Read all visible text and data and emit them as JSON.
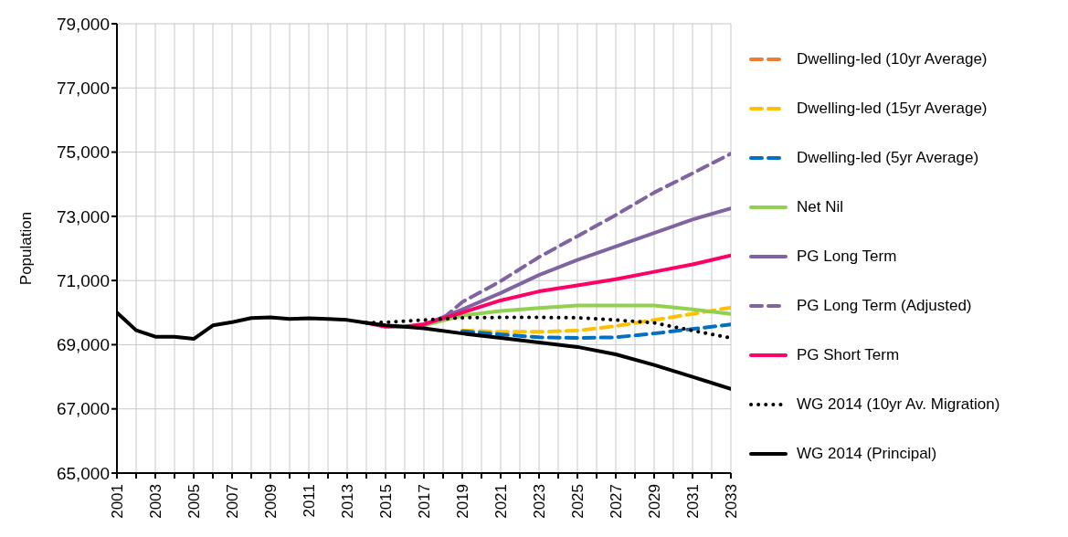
{
  "chart_data": {
    "type": "line",
    "ylabel": "Population",
    "xlim": [
      2001,
      2033
    ],
    "xticks": [
      2001,
      {
        "value": 2002,
        "label": null
      },
      2003,
      {
        "value": 2004,
        "label": null
      },
      2005,
      {
        "value": 2006,
        "label": null
      },
      2007,
      {
        "value": 2008,
        "label": null
      },
      2009,
      {
        "value": 2010,
        "label": null
      },
      2011,
      {
        "value": 2012,
        "label": null
      },
      2013,
      {
        "value": 2014,
        "label": null
      },
      2015,
      {
        "value": 2016,
        "label": null
      },
      2017,
      {
        "value": 2018,
        "label": null
      },
      2019,
      {
        "value": 2020,
        "label": null
      },
      2021,
      {
        "value": 2022,
        "label": null
      },
      2023,
      {
        "value": 2024,
        "label": null
      },
      2025,
      {
        "value": 2026,
        "label": null
      },
      2027,
      {
        "value": 2028,
        "label": null
      },
      2029,
      {
        "value": 2030,
        "label": null
      },
      2031,
      {
        "value": 2032,
        "label": null
      },
      2033
    ],
    "ylim": [
      65000,
      79000
    ],
    "yticks": [
      {
        "value": 65000,
        "label": "65,000"
      },
      {
        "value": 67000,
        "label": "67,000"
      },
      {
        "value": 69000,
        "label": "69,000"
      },
      {
        "value": 71000,
        "label": "71,000"
      },
      {
        "value": 73000,
        "label": "73,000"
      },
      {
        "value": 75000,
        "label": "75,000"
      },
      {
        "value": 77000,
        "label": "77,000"
      },
      {
        "value": 79000,
        "label": "79,000"
      }
    ],
    "grid": true,
    "legend": "right",
    "marker": "none",
    "series": [
      {
        "name": "Dwelling-led (10yr Average)",
        "color": "#ed7d31",
        "line_style": "dashed"
      },
      {
        "name": "Dwelling-led (15yr Average)",
        "color": "#ffc000",
        "line_style": "dashed",
        "x": [
          2019,
          2021,
          2023,
          2025,
          2027,
          2029,
          2031,
          2033
        ],
        "values": [
          69440,
          69400,
          69400,
          69440,
          69580,
          69770,
          69960,
          70160
        ]
      },
      {
        "name": "Dwelling-led (5yr Average)",
        "color": "#0070c0",
        "line_style": "dashed",
        "x": [
          2019,
          2021,
          2023,
          2025,
          2027,
          2029,
          2031,
          2033
        ],
        "values": [
          69420,
          69320,
          69230,
          69210,
          69230,
          69350,
          69490,
          69630
        ]
      },
      {
        "name": "Net Nil",
        "color": "#92d050",
        "line_style": "solid",
        "x": [
          2017,
          2019,
          2021,
          2023,
          2025,
          2027,
          2029,
          2031,
          2033
        ],
        "values": [
          69600,
          69910,
          70050,
          70140,
          70220,
          70220,
          70220,
          70100,
          69960
        ]
      },
      {
        "name": "PG Long Term",
        "color": "#8064a2",
        "line_style": "solid",
        "x": [
          2017,
          2019,
          2021,
          2023,
          2025,
          2027,
          2029,
          2031,
          2033
        ],
        "values": [
          69620,
          70100,
          70610,
          71170,
          71640,
          72060,
          72480,
          72900,
          73250
        ]
      },
      {
        "name": "PG Long Term (Adjusted)",
        "color": "#8064a2",
        "line_style": "dashed",
        "x": [
          2018,
          2019,
          2021,
          2023,
          2025,
          2027,
          2029,
          2031,
          2033
        ],
        "values": [
          69820,
          70330,
          70980,
          71730,
          72380,
          73040,
          73740,
          74340,
          74950
        ]
      },
      {
        "name": "PG Short Term",
        "color": "#ff0066",
        "line_style": "solid",
        "x": [
          2014,
          2015,
          2016,
          2017,
          2019,
          2021,
          2023,
          2025,
          2027,
          2029,
          2031,
          2033
        ],
        "values": [
          69680,
          69560,
          69570,
          69640,
          70000,
          70380,
          70660,
          70850,
          71040,
          71270,
          71500,
          71780
        ]
      },
      {
        "name": "WG 2014 (10yr Av. Migration)",
        "color": "#000000",
        "line_style": "dotted",
        "x": [
          2014,
          2015,
          2017,
          2019,
          2021,
          2023,
          2025,
          2027,
          2029,
          2031,
          2033
        ],
        "values": [
          69680,
          69700,
          69770,
          69840,
          69850,
          69850,
          69840,
          69770,
          69680,
          69440,
          69210
        ]
      },
      {
        "name": "WG 2014 (Principal)",
        "color": "#000000",
        "line_style": "solid",
        "x": [
          2001,
          2002,
          2003,
          2004,
          2005,
          2006,
          2007,
          2008,
          2009,
          2010,
          2011,
          2012,
          2013,
          2014,
          2015,
          2016,
          2017,
          2019,
          2021,
          2023,
          2025,
          2027,
          2029,
          2031,
          2033
        ],
        "values": [
          70000,
          69450,
          69250,
          69250,
          69180,
          69600,
          69700,
          69830,
          69850,
          69800,
          69820,
          69800,
          69770,
          69680,
          69600,
          69560,
          69510,
          69350,
          69210,
          69070,
          68930,
          68700,
          68370,
          68000,
          67620
        ]
      }
    ]
  }
}
